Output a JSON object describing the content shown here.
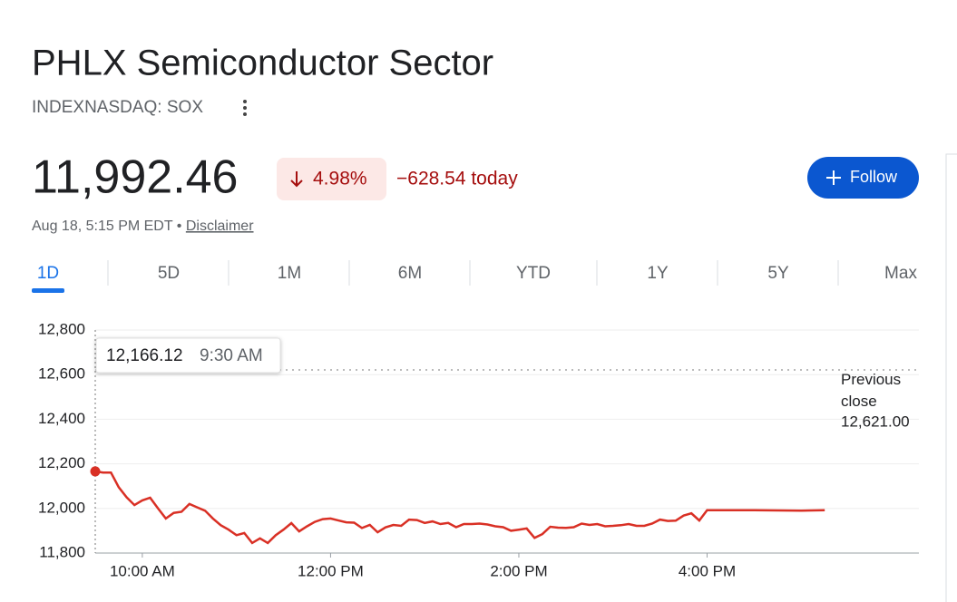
{
  "header": {
    "title": "PHLX Semiconductor Sector",
    "ticker": "INDEXNASDAQ: SOX",
    "price": "11,992.46",
    "change_percent": "4.98%",
    "change_today": "−628.54 today",
    "timestamp": "Aug 18, 5:15 PM EDT",
    "disclaimer": "Disclaimer",
    "follow": "Follow"
  },
  "tabs": [
    "1D",
    "5D",
    "1M",
    "6M",
    "YTD",
    "1Y",
    "5Y",
    "Max"
  ],
  "chart_data": {
    "type": "line",
    "color": "#d93025",
    "x": [
      "9:30 AM",
      "9:35 AM",
      "9:40 AM",
      "9:45 AM",
      "9:50 AM",
      "9:55 AM",
      "10:00 AM",
      "10:05 AM",
      "10:10 AM",
      "10:15 AM",
      "10:20 AM",
      "10:25 AM",
      "10:30 AM",
      "10:35 AM",
      "10:40 AM",
      "10:45 AM",
      "10:50 AM",
      "10:55 AM",
      "11:00 AM",
      "11:05 AM",
      "11:10 AM",
      "11:15 AM",
      "11:20 AM",
      "11:25 AM",
      "11:30 AM",
      "11:35 AM",
      "11:40 AM",
      "11:45 AM",
      "11:50 AM",
      "11:55 AM",
      "12:00 PM",
      "12:05 PM",
      "12:10 PM",
      "12:15 PM",
      "12:20 PM",
      "12:25 PM",
      "12:30 PM",
      "12:35 PM",
      "12:40 PM",
      "12:45 PM",
      "12:50 PM",
      "12:55 PM",
      "1:00 PM",
      "1:05 PM",
      "1:10 PM",
      "1:15 PM",
      "1:20 PM",
      "1:25 PM",
      "1:30 PM",
      "1:35 PM",
      "1:40 PM",
      "1:45 PM",
      "1:50 PM",
      "1:55 PM",
      "2:00 PM",
      "2:05 PM",
      "2:10 PM",
      "2:15 PM",
      "2:20 PM",
      "2:25 PM",
      "2:30 PM",
      "2:35 PM",
      "2:40 PM",
      "2:45 PM",
      "2:50 PM",
      "2:55 PM",
      "3:00 PM",
      "3:05 PM",
      "3:10 PM",
      "3:15 PM",
      "3:20 PM",
      "3:25 PM",
      "3:30 PM",
      "3:35 PM",
      "3:40 PM",
      "3:45 PM",
      "3:50 PM",
      "3:55 PM",
      "4:00 PM",
      "4:15 PM",
      "4:30 PM",
      "4:45 PM",
      "5:00 PM",
      "5:15 PM"
    ],
    "values": [
      12166.12,
      12161,
      12161,
      12095,
      12050,
      12015,
      12036,
      12048,
      12000,
      11955,
      11980,
      11985,
      12020,
      12005,
      11990,
      11955,
      11925,
      11905,
      11880,
      11890,
      11845,
      11866,
      11845,
      11880,
      11905,
      11934,
      11897,
      11920,
      11940,
      11952,
      11955,
      11946,
      11938,
      11936,
      11912,
      11926,
      11893,
      11915,
      11926,
      11922,
      11950,
      11948,
      11935,
      11942,
      11930,
      11935,
      11916,
      11930,
      11930,
      11932,
      11928,
      11920,
      11916,
      11900,
      11905,
      11910,
      11868,
      11885,
      11918,
      11914,
      11913,
      11916,
      11932,
      11926,
      11930,
      11920,
      11922,
      11925,
      11930,
      11922,
      11922,
      11932,
      11950,
      11944,
      11945,
      11968,
      11978,
      11946,
      11992,
      11992,
      11992,
      11991,
      11990,
      11992.46
    ],
    "tooltip_label": "12,166.12",
    "previous_close": {
      "label": "Previous close",
      "value": 12621,
      "value_label": "12,621.00"
    },
    "xlim": [
      "9:30 AM",
      "6:15 PM"
    ],
    "xticks": [
      "10:00 AM",
      "12:00 PM",
      "2:00 PM",
      "4:00 PM"
    ],
    "ylim": [
      11800,
      12800
    ],
    "yticks": [
      {
        "value": 11800,
        "label": "11,800"
      },
      {
        "value": 12000,
        "label": "12,000"
      },
      {
        "value": 12200,
        "label": "12,200"
      },
      {
        "value": 12400,
        "label": "12,400"
      },
      {
        "value": 12600,
        "label": "12,600"
      },
      {
        "value": 12800,
        "label": "12,800"
      }
    ],
    "grid": true
  }
}
